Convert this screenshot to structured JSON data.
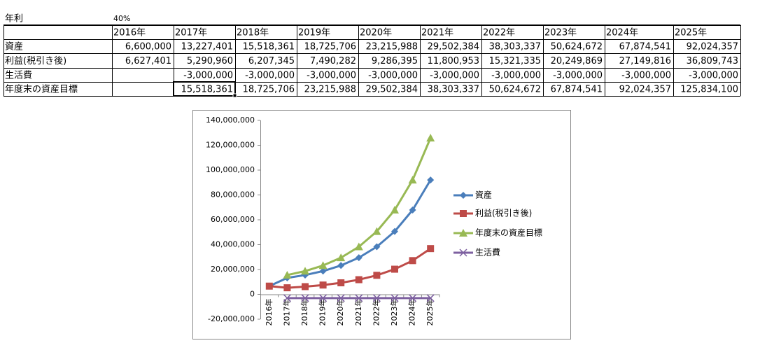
{
  "sheet": {
    "rate_label": "年利",
    "rate": "40%",
    "header": [
      "2016年",
      "2017年",
      "2018年",
      "2019年",
      "2020年",
      "2021年",
      "2022年",
      "2023年",
      "2024年",
      "2025年"
    ],
    "rows": [
      {
        "label": "資産",
        "cells": [
          "6,600,000",
          "13,227,401",
          "15,518,361",
          "18,725,706",
          "23,215,988",
          "29,502,384",
          "38,303,337",
          "50,624,672",
          "67,874,541",
          "92,024,357"
        ]
      },
      {
        "label": "利益(税引き後)",
        "cells": [
          "6,627,401",
          "5,290,960",
          "6,207,345",
          "7,490,282",
          "9,286,395",
          "11,800,953",
          "15,321,335",
          "20,249,869",
          "27,149,816",
          "36,809,743"
        ]
      },
      {
        "label": "生活費",
        "color": "#ff0000",
        "cells": [
          null,
          "-3,000,000",
          "-3,000,000",
          "-3,000,000",
          "-3,000,000",
          "-3,000,000",
          "-3,000,000",
          "-3,000,000",
          "-3,000,000",
          "-3,000,000"
        ]
      },
      {
        "label": "年度末の資産目標",
        "cells": [
          null,
          "15,518,361",
          "18,725,706",
          "23,215,988",
          "29,502,384",
          "38,303,337",
          "50,624,672",
          "67,874,541",
          "92,024,357",
          "125,834,100"
        ]
      }
    ]
  },
  "chart_data": {
    "type": "line",
    "categories": [
      "2016年",
      "2017年",
      "2018年",
      "2019年",
      "2020年",
      "2021年",
      "2022年",
      "2023年",
      "2024年",
      "2025年"
    ],
    "series": [
      {
        "name": "資産",
        "color": "#4a7ebb",
        "marker": "diamond",
        "values": [
          6600000,
          13227401,
          15518361,
          18725706,
          23215988,
          29502384,
          38303337,
          50624672,
          67874541,
          92024357
        ]
      },
      {
        "name": "利益(税引き後)",
        "color": "#be4b48",
        "marker": "square",
        "values": [
          6627401,
          5290960,
          6207345,
          7490282,
          9286395,
          11800953,
          15321335,
          20249869,
          27149816,
          36809743
        ]
      },
      {
        "name": "年度末の資産目標",
        "color": "#98b954",
        "marker": "triangle",
        "values": [
          null,
          15518361,
          18725706,
          23215988,
          29502384,
          38303337,
          50624672,
          67874541,
          92024357,
          125834100
        ]
      },
      {
        "name": "生活費",
        "color": "#7d60a0",
        "marker": "x",
        "values": [
          null,
          -3000000,
          -3000000,
          -3000000,
          -3000000,
          -3000000,
          -3000000,
          -3000000,
          -3000000,
          -3000000
        ]
      }
    ],
    "ylim": [
      -20000000,
      140000000
    ],
    "yticks": [
      {
        "value": -20000000,
        "label": "-20,000,000"
      },
      0,
      {
        "value": 20000000,
        "label": "20,000,000"
      },
      {
        "value": 40000000,
        "label": "40,000,000"
      },
      {
        "value": 60000000,
        "label": "60,000,000"
      },
      {
        "value": 80000000,
        "label": "80,000,000"
      },
      {
        "value": 100000000,
        "label": "100,000,000"
      },
      {
        "value": 120000000,
        "label": "120,000,000"
      },
      {
        "value": 140000000,
        "label": "140,000,000"
      }
    ],
    "legend": "right"
  }
}
